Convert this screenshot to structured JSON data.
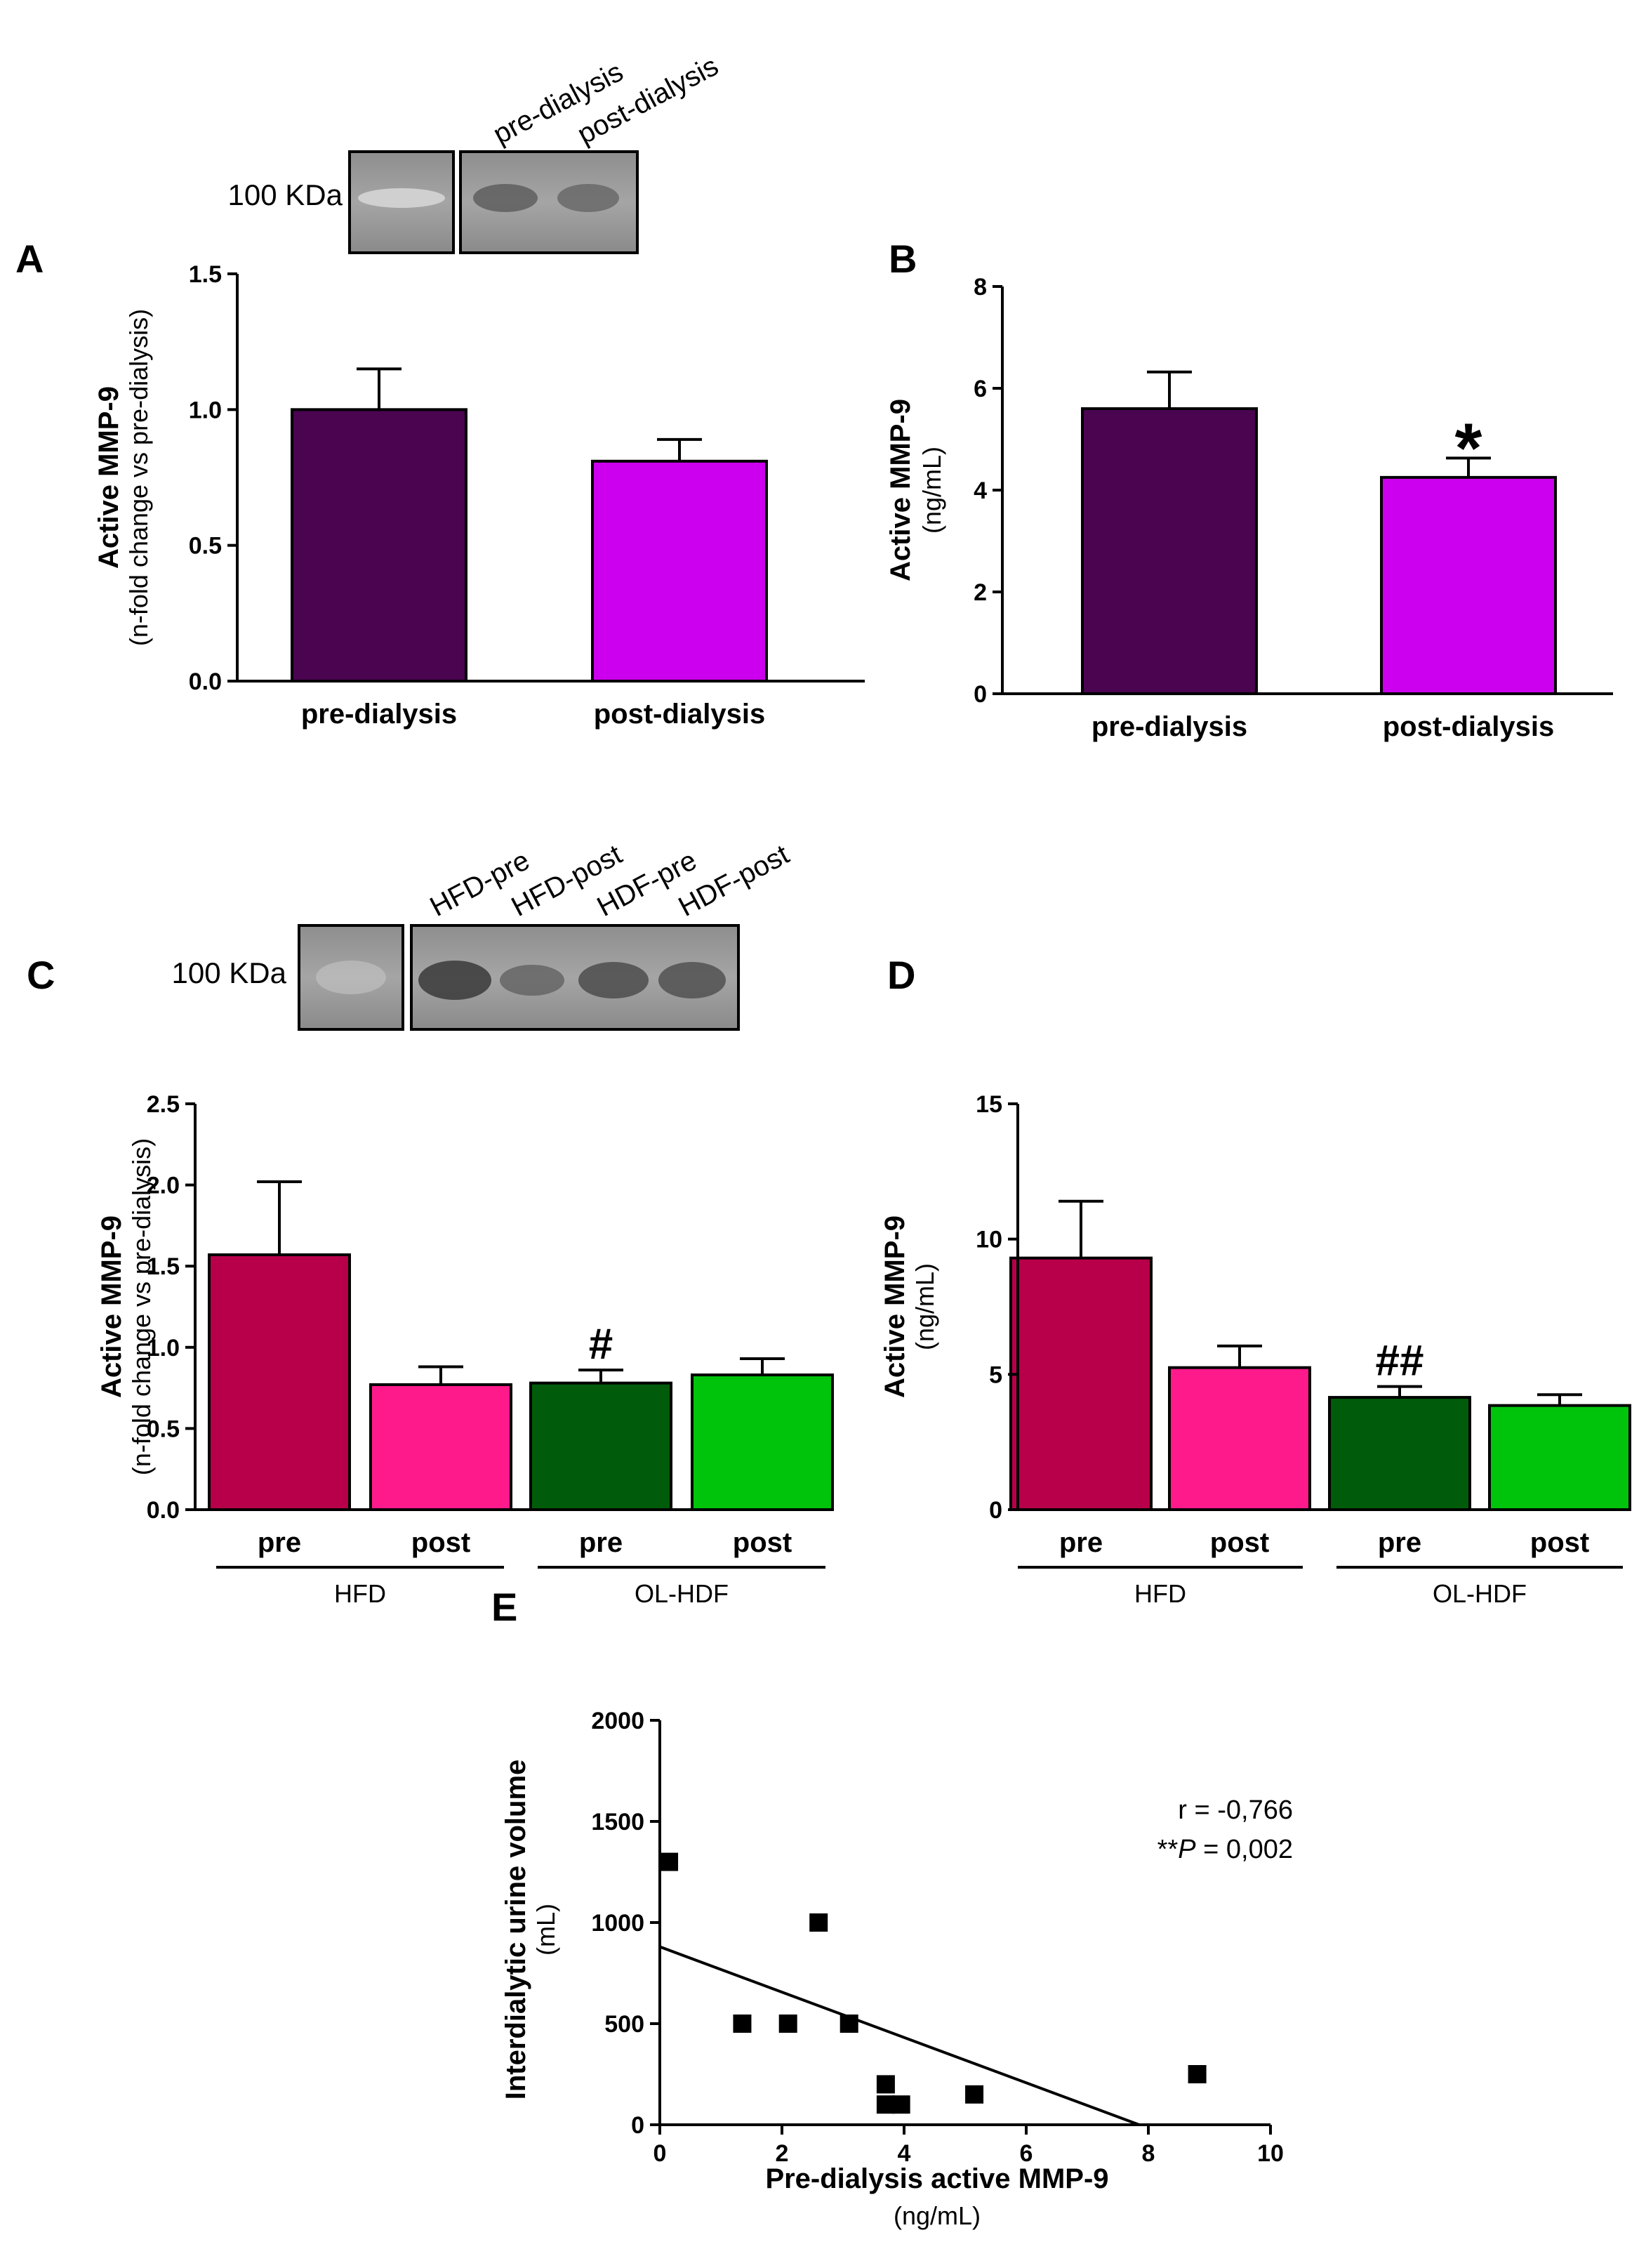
{
  "figure": {
    "gel_top": {
      "kda_label": "100 KDa",
      "lanes": [
        "pre-dialysis",
        "post-dialysis"
      ]
    },
    "gel_bottom": {
      "kda_label": "100 KDa",
      "lanes": [
        "HFD-pre",
        "HFD-post",
        "HDF-pre",
        "HDF-post"
      ]
    }
  },
  "colors": {
    "pre_dialysis": "#4a0450",
    "post_dialysis": "#cc00ee",
    "hfd_pre": "#b8004a",
    "hfd_post": "#ff1a8c",
    "hdf_pre": "#005c0a",
    "hdf_post": "#00c40c"
  },
  "chart_data": [
    {
      "id": "A",
      "type": "bar",
      "panel_label": "A",
      "ylabel": "Active MMP-9",
      "ylabel_sub": "(n-fold change vs pre-dialysis)",
      "categories": [
        "pre-dialysis",
        "post-dialysis"
      ],
      "values": [
        1.0,
        0.81
      ],
      "errors": [
        0.15,
        0.08
      ],
      "colors": [
        "#4a0450",
        "#cc00ee"
      ],
      "ylim": [
        0,
        1.5
      ],
      "yticks": [
        "0.0",
        "0.5",
        "1.0",
        "1.5"
      ],
      "annotations": [
        "",
        ""
      ]
    },
    {
      "id": "B",
      "type": "bar",
      "panel_label": "B",
      "ylabel": "Active MMP-9",
      "ylabel_sub": "(ng/mL)",
      "categories": [
        "pre-dialysis",
        "post-dialysis"
      ],
      "values": [
        5.6,
        4.25
      ],
      "errors": [
        0.72,
        0.38
      ],
      "colors": [
        "#4a0450",
        "#cc00ee"
      ],
      "ylim": [
        0,
        8
      ],
      "yticks": [
        "0",
        "2",
        "4",
        "6",
        "8"
      ],
      "annotations": [
        "",
        "*"
      ]
    },
    {
      "id": "C",
      "type": "bar",
      "panel_label": "C",
      "ylabel": "Active MMP-9",
      "ylabel_sub": "(n-fold change vs pre-dialysis)",
      "categories": [
        "pre",
        "post",
        "pre",
        "post"
      ],
      "groups": [
        {
          "label": "HFD",
          "span": [
            0,
            1
          ]
        },
        {
          "label": "OL-HDF",
          "span": [
            2,
            3
          ]
        }
      ],
      "values": [
        1.57,
        0.77,
        0.78,
        0.83
      ],
      "errors": [
        0.45,
        0.11,
        0.08,
        0.1
      ],
      "colors": [
        "#b8004a",
        "#ff1a8c",
        "#005c0a",
        "#00c40c"
      ],
      "ylim": [
        0,
        2.5
      ],
      "yticks": [
        "0.0",
        "0.5",
        "1.0",
        "1.5",
        "2.0",
        "2.5"
      ],
      "annotations": [
        "",
        "",
        "#",
        ""
      ]
    },
    {
      "id": "D",
      "type": "bar",
      "panel_label": "D",
      "ylabel": "Active MMP-9",
      "ylabel_sub": "(ng/mL)",
      "categories": [
        "pre",
        "post",
        "pre",
        "post"
      ],
      "groups": [
        {
          "label": "HFD",
          "span": [
            0,
            1
          ]
        },
        {
          "label": "OL-HDF",
          "span": [
            2,
            3
          ]
        }
      ],
      "values": [
        9.3,
        5.25,
        4.15,
        3.85
      ],
      "errors": [
        2.1,
        0.8,
        0.4,
        0.4
      ],
      "colors": [
        "#b8004a",
        "#ff1a8c",
        "#005c0a",
        "#00c40c"
      ],
      "ylim": [
        0,
        15
      ],
      "yticks": [
        "0",
        "5",
        "10",
        "15"
      ],
      "annotations": [
        "",
        "",
        "##",
        ""
      ]
    },
    {
      "id": "E",
      "type": "scatter",
      "panel_label": "E",
      "ylabel": "Interdialytic urine volume",
      "ylabel_sub": "(mL)",
      "xlabel": "Pre-dialysis active MMP-9",
      "xlabel_sub": "(ng/mL)",
      "xlim": [
        0,
        10
      ],
      "ylim": [
        0,
        2000
      ],
      "xticks": [
        "0",
        "2",
        "4",
        "6",
        "8",
        "10"
      ],
      "yticks": [
        "0",
        "500",
        "1000",
        "1500",
        "2000"
      ],
      "x": [
        0.15,
        1.35,
        2.1,
        2.6,
        3.1,
        3.7,
        3.7,
        3.95,
        5.15,
        8.8
      ],
      "y": [
        1300,
        500,
        500,
        1000,
        500,
        200,
        100,
        100,
        150,
        250
      ],
      "fit_line": {
        "x": [
          0,
          7.85
        ],
        "y": [
          880,
          0
        ]
      },
      "stats": {
        "r_text": "r = -0,766",
        "p_prefix": "**",
        "p_symbol": "P",
        "p_suffix": " = 0,002"
      }
    }
  ]
}
